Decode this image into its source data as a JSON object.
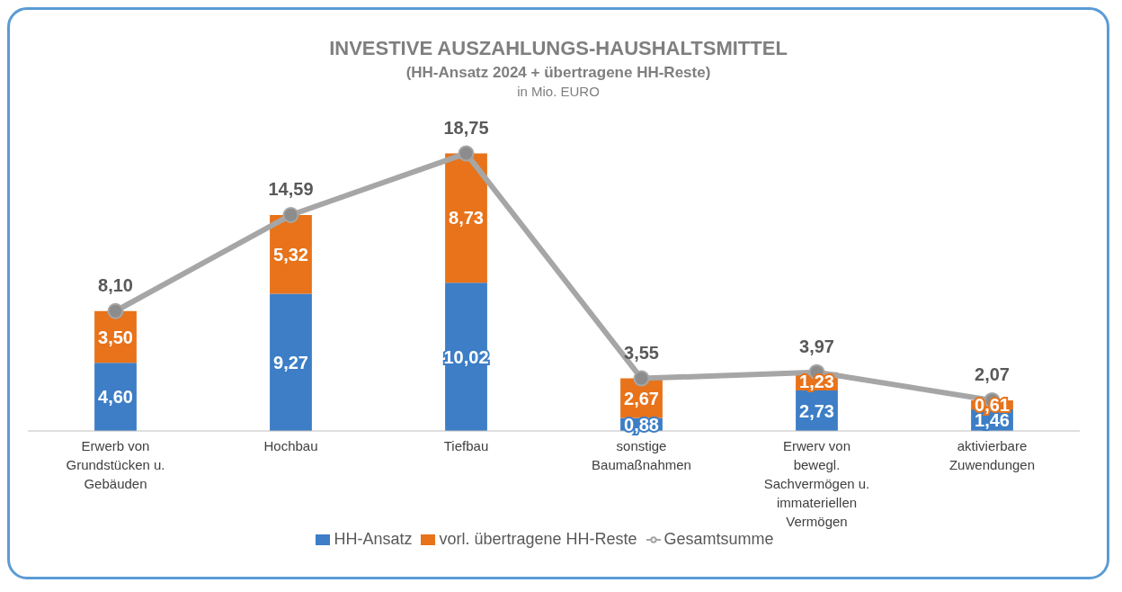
{
  "chart_data": {
    "type": "bar",
    "title": "INVESTIVE AUSZAHLUNGS-HAUSHALTSMITTEL",
    "subtitle": "(HH-Ansatz 2024 + übertragene HH-Reste)",
    "annotations": [
      "in Mio. EURO"
    ],
    "categories": [
      "Erwerb von Grundstücken u. Gebäuden",
      "Hochbau",
      "Tiefbau",
      "sonstige Baumaßnahmen",
      "Erwerv von bewegl. Sachvermögen u. immateriellen Vermögen",
      "aktivierbare Zuwendungen"
    ],
    "stacked": true,
    "legend": "bottom",
    "tick_labels": "x",
    "marker": "circle",
    "series": [
      {
        "name": "HH-Ansatz",
        "color": "#3d7ec6",
        "values": [
          4.6,
          9.27,
          10.02,
          0.88,
          2.73,
          1.46
        ],
        "value_labels": [
          "4,60",
          "9,27",
          "10,02",
          "0,88",
          "2,73",
          "1,46"
        ]
      },
      {
        "name": "vorl. übertragene HH-Reste",
        "color": "#e8731a",
        "values": [
          3.5,
          5.32,
          8.73,
          2.67,
          1.23,
          0.61
        ],
        "value_labels": [
          "3,50",
          "5,32",
          "8,73",
          "2,67",
          "1,23",
          "0,61"
        ]
      },
      {
        "name": "Gesamtsumme",
        "type": "line",
        "color": "#a6a6a6",
        "values": [
          8.1,
          14.59,
          18.75,
          3.55,
          3.97,
          2.07
        ],
        "value_labels": [
          "8,10",
          "14,59",
          "18,75",
          "3,55",
          "3,97",
          "2,07"
        ]
      }
    ]
  }
}
